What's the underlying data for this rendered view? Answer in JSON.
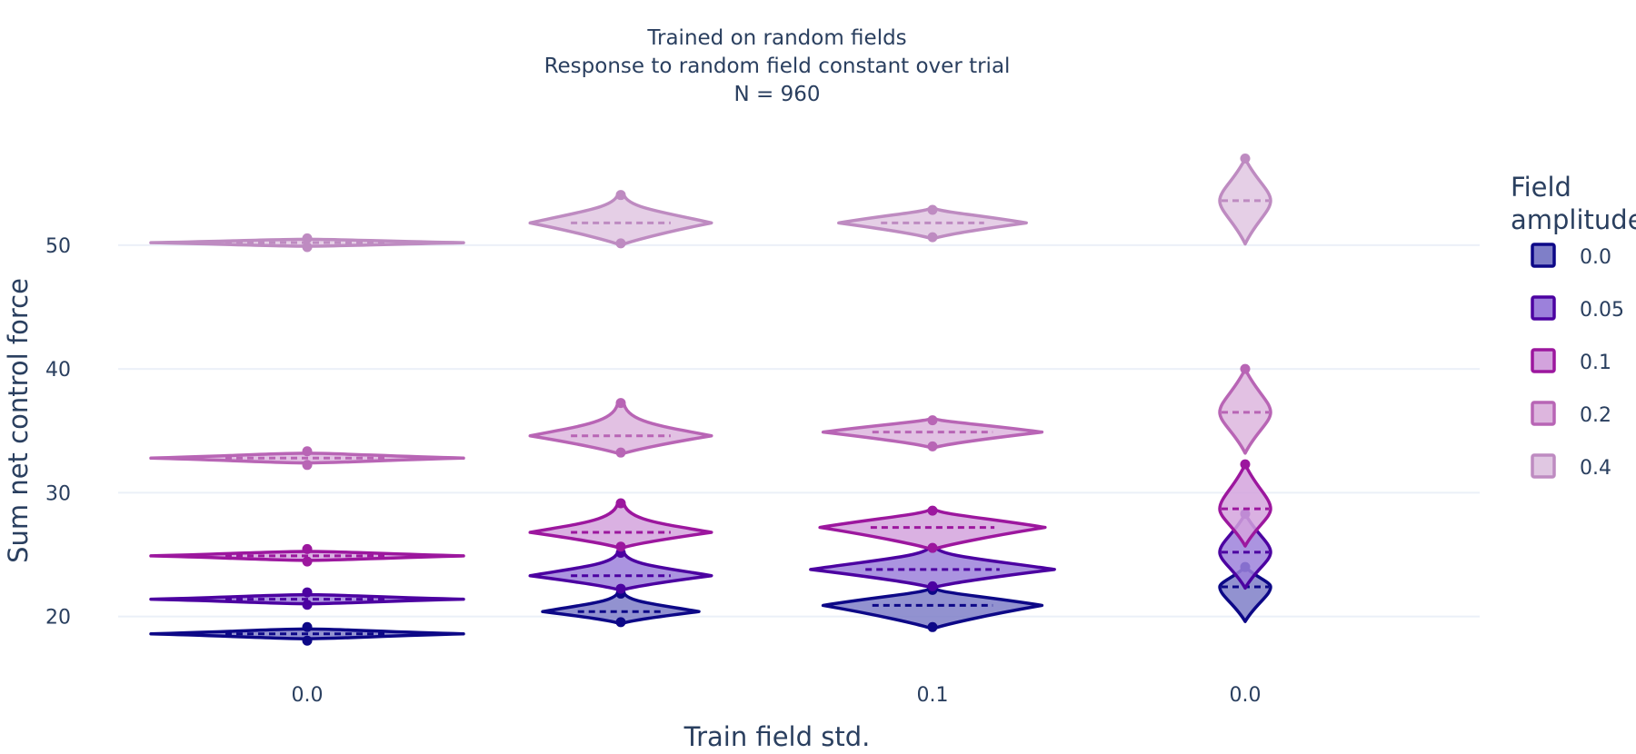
{
  "chart_data": {
    "type": "violin",
    "title_lines": [
      "Trained on random fields",
      "Response to random field constant over trial",
      "N = 960"
    ],
    "xlabel": "Train field std.",
    "ylabel": "Sum net control force",
    "x_tick_labels": [
      "0.0",
      "",
      "0.1",
      "0.0"
    ],
    "y_ticks": [
      20,
      30,
      40,
      50
    ],
    "ylim": [
      15.5,
      58.8
    ],
    "grid": true,
    "legend": {
      "title": "Field amplitude",
      "title_lines": [
        "Field",
        "amplitude"
      ],
      "placement": "right"
    },
    "series": [
      {
        "name": "0.0",
        "color": "#0d0887",
        "fill": "#7f7fc8",
        "violins": [
          {
            "group": 0,
            "center": 18.6,
            "min": 17.9,
            "max": 19.3,
            "spread": 1.0
          },
          {
            "group": 1,
            "center": 20.4,
            "min": 19.4,
            "max": 22.0,
            "spread": 0.5
          },
          {
            "group": 2,
            "center": 20.9,
            "min": 19.0,
            "max": 22.3,
            "spread": 0.7
          },
          {
            "group": 3,
            "center": 22.4,
            "min": 19.6,
            "max": 24.0,
            "spread": 0.12
          }
        ]
      },
      {
        "name": "0.05",
        "color": "#4c02a1",
        "fill": "#9c81db",
        "violins": [
          {
            "group": 0,
            "center": 21.4,
            "min": 20.8,
            "max": 22.1,
            "spread": 1.0
          },
          {
            "group": 1,
            "center": 23.3,
            "min": 22.1,
            "max": 25.3,
            "spread": 0.58
          },
          {
            "group": 2,
            "center": 23.8,
            "min": 22.3,
            "max": 25.7,
            "spread": 0.78
          },
          {
            "group": 3,
            "center": 25.2,
            "min": 22.3,
            "max": 28.3,
            "spread": 0.15
          }
        ]
      },
      {
        "name": "0.1",
        "color": "#9c179e",
        "fill": "#d3a3dd",
        "violins": [
          {
            "group": 0,
            "center": 24.9,
            "min": 24.3,
            "max": 25.6,
            "spread": 1.0
          },
          {
            "group": 1,
            "center": 26.8,
            "min": 25.5,
            "max": 29.3,
            "spread": 0.58
          },
          {
            "group": 2,
            "center": 27.2,
            "min": 25.4,
            "max": 28.7,
            "spread": 0.72
          },
          {
            "group": 3,
            "center": 28.7,
            "min": 25.7,
            "max": 32.3,
            "spread": 0.15
          }
        ]
      },
      {
        "name": "0.2",
        "color": "#b865b5",
        "fill": "#ddb6de",
        "violins": [
          {
            "group": 0,
            "center": 32.8,
            "min": 32.1,
            "max": 33.5,
            "spread": 1.0
          },
          {
            "group": 1,
            "center": 34.6,
            "min": 33.1,
            "max": 37.4,
            "spread": 0.58
          },
          {
            "group": 2,
            "center": 34.9,
            "min": 33.6,
            "max": 36.0,
            "spread": 0.7
          },
          {
            "group": 3,
            "center": 36.5,
            "min": 33.2,
            "max": 40.0,
            "spread": 0.15
          }
        ]
      },
      {
        "name": "0.4",
        "color": "#be8bc1",
        "fill": "#e0c7e2",
        "violins": [
          {
            "group": 0,
            "center": 50.2,
            "min": 49.7,
            "max": 50.7,
            "spread": 1.0
          },
          {
            "group": 1,
            "center": 51.8,
            "min": 50.0,
            "max": 54.2,
            "spread": 0.58
          },
          {
            "group": 2,
            "center": 51.8,
            "min": 50.5,
            "max": 53.0,
            "spread": 0.6
          },
          {
            "group": 3,
            "center": 53.6,
            "min": 50.1,
            "max": 57.0,
            "spread": 0.15
          }
        ]
      }
    ]
  }
}
